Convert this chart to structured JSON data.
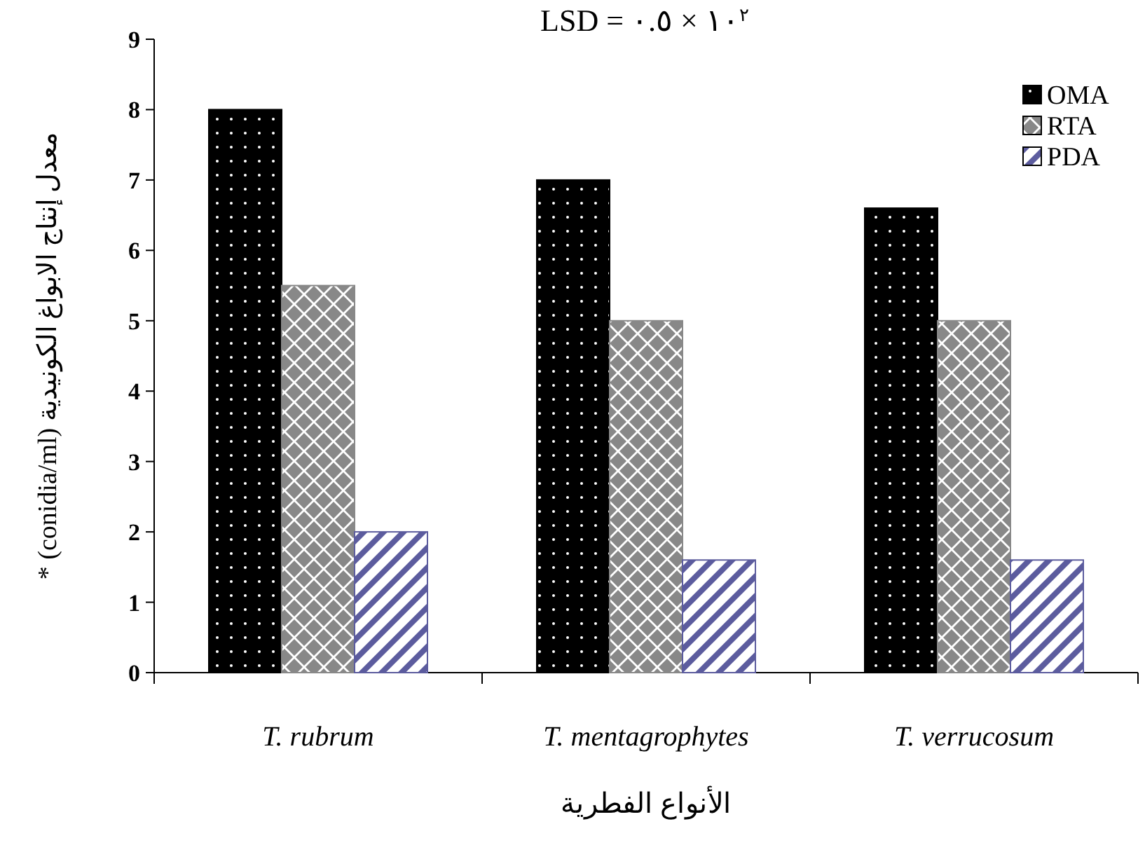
{
  "chart_data": {
    "type": "bar",
    "title": "LSD = ٠.٥ × ١٠$^{٢}$",
    "xlabel": "الأنواع الفطرية",
    "ylabel": "معدل إنتاج الابواغ الكونيدية (conidia/ml) *",
    "categories": [
      "T. rubrum",
      "T. mentagrophytes",
      "T. verrucosum"
    ],
    "series": [
      {
        "name": "OMA",
        "color": "#000000",
        "values": [
          8,
          7,
          6.6
        ]
      },
      {
        "name": "RTA",
        "color": "#888888",
        "values": [
          5.5,
          5,
          5
        ]
      },
      {
        "name": "PDA",
        "color": "#5c5c9e",
        "values": [
          2,
          1.6,
          1.6
        ]
      }
    ],
    "ylim": [
      0,
      9
    ],
    "yticks": [
      0,
      1,
      2,
      3,
      4,
      5,
      6,
      7,
      8,
      9
    ],
    "grid": false,
    "legend": "top right"
  }
}
